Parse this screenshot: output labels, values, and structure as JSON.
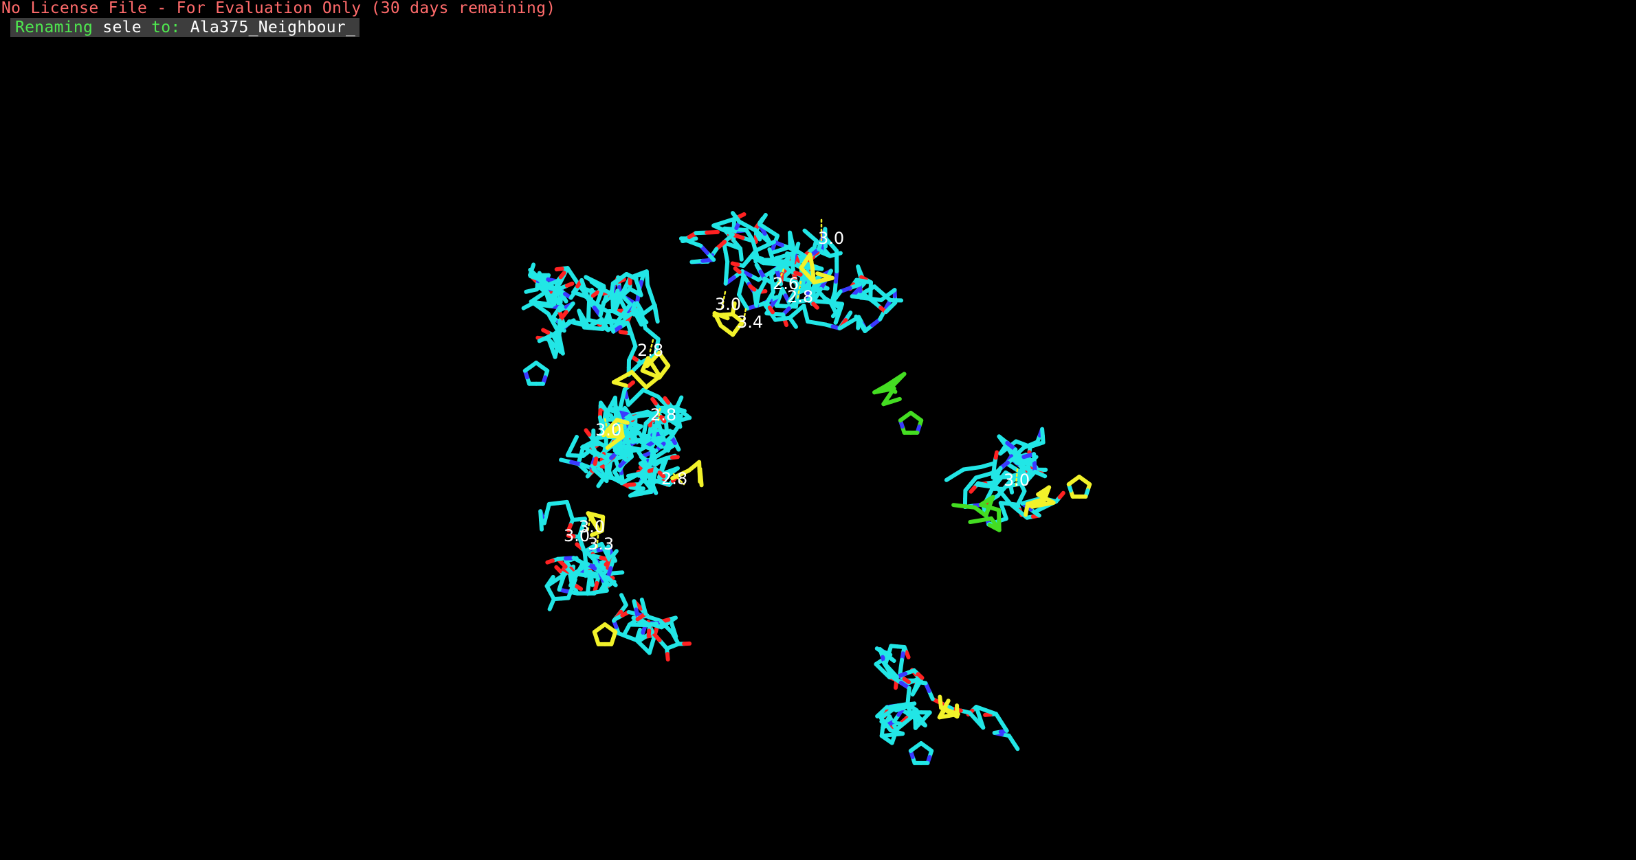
{
  "app": {
    "license_banner": "No License File - For Evaluation Only (30 days remaining)",
    "license_color": "#ff6b6b"
  },
  "prompt": {
    "word_renaming": "Renaming",
    "word_sele": "sele",
    "word_to": "to:",
    "value": "Ala375_Neighbour_",
    "keyword_color": "#4fe84f",
    "text_color": "#ffffff"
  },
  "viewer": {
    "background": "#000000",
    "carbon_color": "#22e6e6",
    "nitrogen_color": "#3a3aff",
    "oxygen_color": "#ff2222",
    "highlight_color": "#f2f22a",
    "ligand_color": "#44dd22",
    "distance_labels": [
      "3.0",
      "2.6",
      "2.8",
      "3.0",
      "3.4",
      "2.8",
      "3.0",
      "2.8",
      "2.8",
      "3.0",
      "3.3",
      "3.0",
      "3.0"
    ]
  }
}
